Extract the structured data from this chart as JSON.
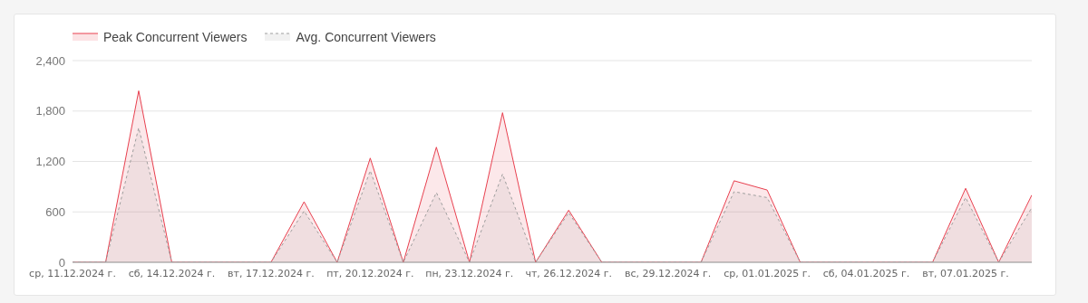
{
  "chart_data": {
    "type": "area",
    "categories": [
      "ср, 11.12.2024 г.",
      null,
      null,
      "сб, 14.12.2024 г.",
      null,
      null,
      "вт, 17.12.2024 г.",
      null,
      null,
      "пт, 20.12.2024 г.",
      null,
      null,
      "пн, 23.12.2024 г.",
      null,
      null,
      "чт, 26.12.2024 г.",
      null,
      null,
      "вс, 29.12.2024 г.",
      null,
      null,
      "ср, 01.01.2025 г.",
      null,
      null,
      "сб, 04.01.2025 г.",
      null,
      null,
      "вт, 07.01.2025 г.",
      null,
      null
    ],
    "series": [
      {
        "name": "Peak Concurrent Viewers",
        "color": "#e8404f",
        "line_style": "solid",
        "values": [
          0,
          0,
          2040,
          0,
          0,
          0,
          0,
          720,
          0,
          1240,
          0,
          1370,
          0,
          1780,
          0,
          620,
          0,
          0,
          0,
          0,
          970,
          860,
          0,
          0,
          0,
          0,
          0,
          880,
          0,
          800
        ]
      },
      {
        "name": "Avg. Concurrent Viewers",
        "color": "#9e9e9e",
        "line_style": "dashed",
        "values": [
          0,
          0,
          1600,
          0,
          0,
          0,
          0,
          610,
          0,
          1090,
          0,
          830,
          0,
          1050,
          0,
          590,
          0,
          0,
          0,
          0,
          840,
          770,
          0,
          0,
          0,
          0,
          0,
          770,
          0,
          650
        ]
      }
    ],
    "ylim": [
      0,
      2400
    ],
    "yticks": [
      0,
      600,
      {
        "value": 1200,
        "label": "1,200"
      },
      {
        "value": 1800,
        "label": "1,800"
      },
      {
        "value": 2400,
        "label": "2,400"
      }
    ],
    "grid": "y",
    "legend": "top left",
    "marker": "none"
  }
}
